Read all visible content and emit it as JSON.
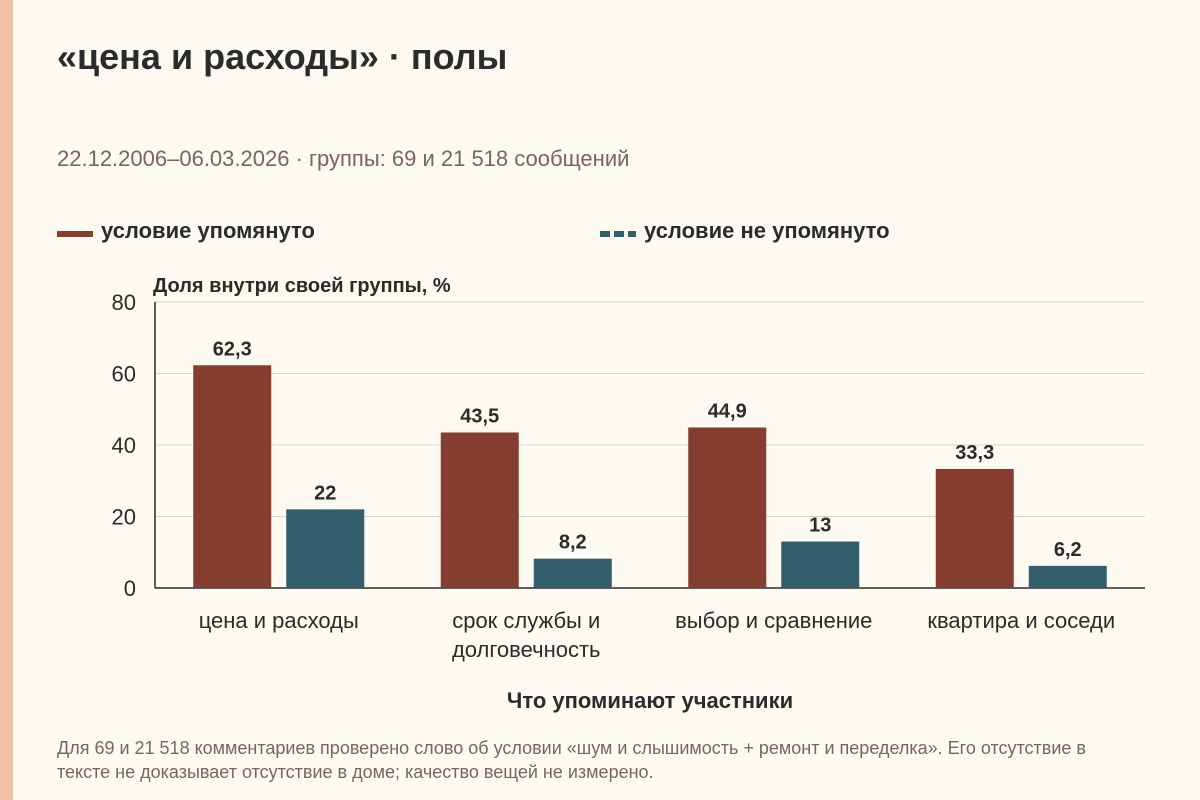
{
  "title": "«цена и расходы» · полы",
  "subtitle": "22.12.2006–06.03.2026 · группы: 69 и 21 518 сообщений",
  "colors": {
    "mentioned": "#853d2f",
    "not_mentioned": "#335e6b",
    "background": "#fdfaf2",
    "accent_stripe": "#eec0a6"
  },
  "footnote": "Для 69 и 21 518 комментариев проверено слово об условии «шум и слышимость + ремонт и переделка». Его отсутствие в тексте не доказывает отсутствие в доме; качество вещей не измерено.",
  "chart_data": {
    "type": "bar",
    "title": "«цена и расходы» · полы",
    "subtitle": "22.12.2006–06.03.2026 · группы: 69 и 21 518 сообщений",
    "xlabel": "Что упоминают участники",
    "ylabel": "Доля внутри своей группы, %",
    "ylim": [
      0,
      80
    ],
    "yticks": [
      "0",
      "20",
      "40",
      "60",
      "80"
    ],
    "ytick_values": [
      0,
      20,
      40,
      60,
      80
    ],
    "grid": true,
    "legend_position": "top",
    "categories": [
      [
        "цена и расходы"
      ],
      [
        "срок службы и",
        "долговечность"
      ],
      [
        "выбор и сравнение"
      ],
      [
        "квартира и соседи"
      ]
    ],
    "series": [
      {
        "name": "условие упомянуто",
        "values": [
          62.3,
          43.5,
          44.9,
          33.3
        ],
        "labels": [
          "62,3",
          "43,5",
          "44,9",
          "33,3"
        ]
      },
      {
        "name": "условие не упомянуто",
        "values": [
          22,
          8.2,
          13,
          6.2
        ],
        "labels": [
          "22",
          "8,2",
          "13",
          "6,2"
        ]
      }
    ]
  }
}
